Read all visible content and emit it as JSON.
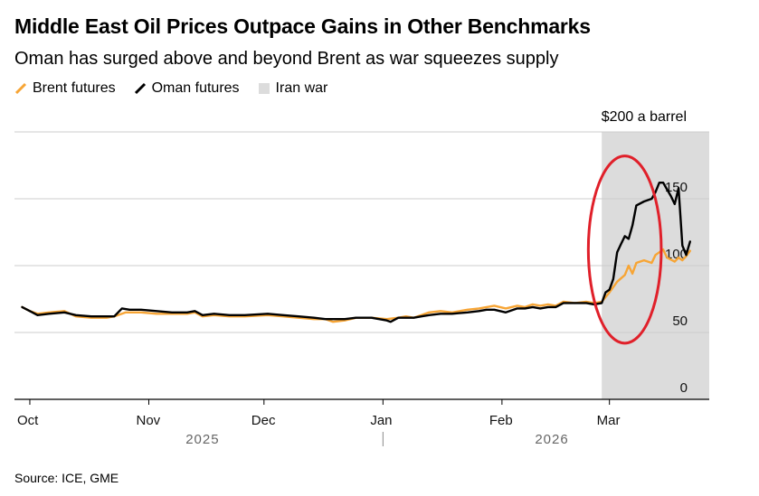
{
  "title": "Middle East Oil Prices Outpace Gains in Other Benchmarks",
  "subtitle": "Oman has surged above and beyond Brent as war squeezes supply",
  "source": "Source: ICE, GME",
  "colors": {
    "brent": "#f7a535",
    "oman": "#000000",
    "war": "#dcdcdc",
    "annotation": "#e0202a",
    "grid": "#cccccc"
  },
  "chart_data": {
    "type": "line",
    "title": "Middle East Oil Prices Outpace Gains in Other Benchmarks",
    "unit_label": "$200 a barrel",
    "ylim": [
      0,
      200
    ],
    "xlim": [
      -4,
      177
    ],
    "y_ticks": [
      {
        "value": 0,
        "label": "0"
      },
      {
        "value": 50,
        "label": "50"
      },
      {
        "value": 100,
        "label": "100"
      },
      {
        "value": 150,
        "label": "150"
      }
    ],
    "x_ticks": [
      {
        "day": 0,
        "label": "Oct"
      },
      {
        "day": 31,
        "label": "Nov"
      },
      {
        "day": 61,
        "label": "Dec"
      },
      {
        "day": 92,
        "label": "Jan"
      },
      {
        "day": 123,
        "label": "Feb"
      },
      {
        "day": 151,
        "label": "Mar"
      }
    ],
    "year_labels": [
      {
        "day": 45,
        "label": "2025"
      },
      {
        "day": 136,
        "label": "2026"
      }
    ],
    "year_divider_day": 92,
    "shaded_region": {
      "label": "Iran war",
      "start_day": 149,
      "end_day": 177
    },
    "legend": [
      {
        "key": "brent",
        "label": "Brent futures"
      },
      {
        "key": "oman",
        "label": "Oman futures"
      },
      {
        "key": "war",
        "label": "Iran war"
      }
    ],
    "highlight_ellipse": {
      "center_day": 155,
      "center_value": 112,
      "rx_days": 9.5,
      "ry_value": 70
    },
    "series": [
      {
        "name": "Brent futures",
        "key": "brent",
        "points": [
          [
            -2,
            69
          ],
          [
            0,
            66
          ],
          [
            2,
            64
          ],
          [
            5,
            65
          ],
          [
            9,
            66
          ],
          [
            12,
            62
          ],
          [
            16,
            61
          ],
          [
            20,
            61
          ],
          [
            22,
            62
          ],
          [
            25,
            65
          ],
          [
            29,
            65
          ],
          [
            33,
            64
          ],
          [
            37,
            64
          ],
          [
            41,
            64
          ],
          [
            43,
            65
          ],
          [
            45,
            62
          ],
          [
            48,
            63
          ],
          [
            52,
            62
          ],
          [
            56,
            62
          ],
          [
            62,
            63
          ],
          [
            66,
            62
          ],
          [
            70,
            61
          ],
          [
            74,
            60
          ],
          [
            77,
            60
          ],
          [
            79,
            58
          ],
          [
            82,
            59
          ],
          [
            85,
            61
          ],
          [
            89,
            61
          ],
          [
            93,
            60
          ],
          [
            96,
            61
          ],
          [
            98,
            62
          ],
          [
            100,
            61
          ],
          [
            102,
            63
          ],
          [
            104,
            65
          ],
          [
            107,
            66
          ],
          [
            110,
            65
          ],
          [
            114,
            67
          ],
          [
            117,
            68
          ],
          [
            119,
            69
          ],
          [
            121,
            70
          ],
          [
            124,
            68
          ],
          [
            127,
            70
          ],
          [
            129,
            69
          ],
          [
            131,
            71
          ],
          [
            133,
            70
          ],
          [
            135,
            71
          ],
          [
            137,
            70
          ],
          [
            139,
            73
          ],
          [
            142,
            72
          ],
          [
            145,
            73
          ],
          [
            147,
            72
          ],
          [
            149,
            73
          ],
          [
            151,
            80
          ],
          [
            153,
            88
          ],
          [
            155,
            93
          ],
          [
            156,
            100
          ],
          [
            157,
            94
          ],
          [
            158,
            102
          ],
          [
            160,
            104
          ],
          [
            162,
            102
          ],
          [
            163,
            108
          ],
          [
            165,
            112
          ],
          [
            166,
            106
          ],
          [
            168,
            103
          ],
          [
            169,
            106
          ],
          [
            170,
            104
          ],
          [
            171,
            107
          ],
          [
            172,
            111
          ]
        ]
      },
      {
        "name": "Oman futures",
        "key": "oman",
        "points": [
          [
            -2,
            69
          ],
          [
            0,
            66
          ],
          [
            2,
            63
          ],
          [
            5,
            64
          ],
          [
            9,
            65
          ],
          [
            12,
            63
          ],
          [
            16,
            62
          ],
          [
            20,
            62
          ],
          [
            22,
            62
          ],
          [
            24,
            68
          ],
          [
            26,
            67
          ],
          [
            29,
            67
          ],
          [
            33,
            66
          ],
          [
            37,
            65
          ],
          [
            41,
            65
          ],
          [
            43,
            66
          ],
          [
            45,
            63
          ],
          [
            48,
            64
          ],
          [
            52,
            63
          ],
          [
            56,
            63
          ],
          [
            62,
            64
          ],
          [
            66,
            63
          ],
          [
            70,
            62
          ],
          [
            74,
            61
          ],
          [
            77,
            60
          ],
          [
            79,
            60
          ],
          [
            82,
            60
          ],
          [
            85,
            61
          ],
          [
            89,
            61
          ],
          [
            93,
            59
          ],
          [
            94,
            58
          ],
          [
            96,
            61
          ],
          [
            98,
            61
          ],
          [
            100,
            61
          ],
          [
            102,
            62
          ],
          [
            104,
            63
          ],
          [
            107,
            64
          ],
          [
            110,
            64
          ],
          [
            114,
            65
          ],
          [
            117,
            66
          ],
          [
            119,
            67
          ],
          [
            121,
            67
          ],
          [
            124,
            65
          ],
          [
            127,
            68
          ],
          [
            129,
            68
          ],
          [
            131,
            69
          ],
          [
            133,
            68
          ],
          [
            135,
            69
          ],
          [
            137,
            69
          ],
          [
            139,
            72
          ],
          [
            142,
            72
          ],
          [
            145,
            72
          ],
          [
            147,
            71
          ],
          [
            149,
            72
          ],
          [
            150,
            80
          ],
          [
            151,
            82
          ],
          [
            152,
            90
          ],
          [
            153,
            110
          ],
          [
            154,
            116
          ],
          [
            155,
            122
          ],
          [
            156,
            120
          ],
          [
            157,
            130
          ],
          [
            158,
            145
          ],
          [
            160,
            148
          ],
          [
            162,
            150
          ],
          [
            163,
            155
          ],
          [
            164,
            162
          ],
          [
            165,
            162
          ],
          [
            166,
            157
          ],
          [
            167,
            152
          ],
          [
            168,
            146
          ],
          [
            169,
            158
          ],
          [
            170,
            115
          ],
          [
            171,
            108
          ],
          [
            172,
            118
          ]
        ]
      }
    ]
  }
}
